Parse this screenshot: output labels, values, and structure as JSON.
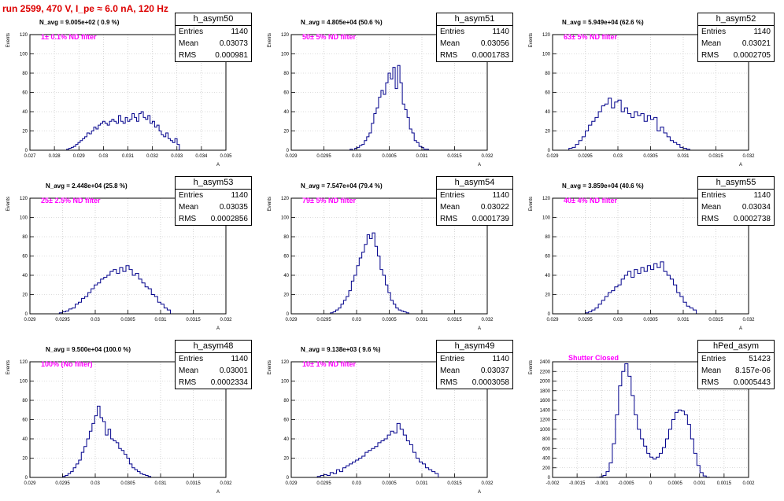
{
  "run_title": "run 2599,   470 V, I_pe ≈ 6.0 nA, 120 Hz",
  "colors": {
    "histogram": "#00008b",
    "filter_label": "#ff00ff",
    "title": "#dd0000",
    "grid": "#bbbbbb"
  },
  "chart_data": [
    {
      "type": "histogram",
      "hist_name": "h_asym50",
      "navg": "N_avg = 9.005e+02 ( 0.9 %)",
      "filter": "1± 0.1% ND filter",
      "stats": {
        "entries": "1140",
        "mean": "0.03073",
        "rms": "0.000981"
      },
      "ylabel": "Events",
      "xlabel": "A",
      "xlim": [
        0.027,
        0.035
      ],
      "ylim": [
        0,
        120
      ],
      "xticks": [
        0.027,
        0.028,
        0.029,
        0.03,
        0.031,
        0.032,
        0.033,
        0.034,
        0.035
      ],
      "xtick_labels": [
        "0.027",
        "0.028",
        "0.029",
        "0.03",
        "0.031",
        "0.032",
        "0.033",
        "0.034",
        "0.035"
      ],
      "yticks": [
        0,
        20,
        40,
        60,
        80,
        100,
        120
      ],
      "bin_edges": [
        0.0285,
        0.0331
      ],
      "counts": [
        1,
        2,
        3,
        4,
        6,
        8,
        10,
        12,
        14,
        18,
        17,
        20,
        24,
        22,
        26,
        28,
        30,
        28,
        26,
        30,
        32,
        30,
        28,
        36,
        30,
        28,
        34,
        30,
        32,
        38,
        34,
        30,
        38,
        40,
        34,
        32,
        36,
        28,
        30,
        24,
        26,
        20,
        16,
        14,
        18,
        12,
        10,
        8,
        12,
        6
      ]
    },
    {
      "type": "histogram",
      "hist_name": "h_asym51",
      "navg": "N_avg = 4.805e+04 (50.6 %)",
      "filter": "50± 5% ND filter",
      "stats": {
        "entries": "1140",
        "mean": "0.03056",
        "rms": "0.0001783"
      },
      "ylabel": "Events",
      "xlabel": "A",
      "xlim": [
        0.029,
        0.032
      ],
      "ylim": [
        0,
        120
      ],
      "xticks": [
        0.029,
        0.0295,
        0.03,
        0.0305,
        0.031,
        0.0315,
        0.032
      ],
      "xtick_labels": [
        "0.029",
        "0.0295",
        "0.03",
        "0.0305",
        "0.031",
        "0.0315",
        "0.032"
      ],
      "yticks": [
        0,
        20,
        40,
        60,
        80,
        100,
        120
      ],
      "bin_edges": [
        0.0299,
        0.0311
      ],
      "counts": [
        1,
        0,
        2,
        3,
        5,
        6,
        10,
        14,
        18,
        28,
        38,
        44,
        55,
        62,
        58,
        70,
        80,
        74,
        86,
        64,
        88,
        70,
        48,
        42,
        34,
        22,
        18,
        10,
        8,
        4,
        3,
        1,
        1
      ]
    },
    {
      "type": "histogram",
      "hist_name": "h_asym52",
      "navg": "N_avg = 5.949e+04 (62.6 %)",
      "filter": "63± 5% ND filter",
      "stats": {
        "entries": "1140",
        "mean": "0.03021",
        "rms": "0.0002705"
      },
      "ylabel": "Events",
      "xlabel": "A",
      "xlim": [
        0.029,
        0.032
      ],
      "ylim": [
        0,
        120
      ],
      "xticks": [
        0.029,
        0.0295,
        0.03,
        0.0305,
        0.031,
        0.0315,
        0.032
      ],
      "xtick_labels": [
        "0.029",
        "0.0295",
        "0.03",
        "0.0305",
        "0.031",
        "0.0315",
        "0.032"
      ],
      "yticks": [
        0,
        20,
        40,
        60,
        80,
        100,
        120
      ],
      "bin_edges": [
        0.02925,
        0.0311
      ],
      "counts": [
        2,
        3,
        6,
        10,
        14,
        20,
        26,
        30,
        34,
        40,
        46,
        48,
        54,
        44,
        50,
        52,
        40,
        44,
        38,
        34,
        40,
        36,
        38,
        30,
        36,
        32,
        34,
        20,
        24,
        18,
        14,
        10,
        8,
        6,
        3,
        2,
        1
      ]
    },
    {
      "type": "histogram",
      "hist_name": "h_asym53",
      "navg": "N_avg = 2.448e+04 (25.8 %)",
      "filter": "25± 2.5% ND filter",
      "stats": {
        "entries": "1140",
        "mean": "0.03035",
        "rms": "0.0002856"
      },
      "ylabel": "Events",
      "xlabel": "A",
      "xlim": [
        0.029,
        0.032
      ],
      "ylim": [
        0,
        120
      ],
      "xticks": [
        0.029,
        0.0295,
        0.03,
        0.0305,
        0.031,
        0.0315,
        0.032
      ],
      "xtick_labels": [
        "0.029",
        "0.0295",
        "0.03",
        "0.0305",
        "0.031",
        "0.0315",
        "0.032"
      ],
      "yticks": [
        0,
        20,
        40,
        60,
        80,
        100,
        120
      ],
      "bin_edges": [
        0.02945,
        0.03115
      ],
      "counts": [
        1,
        2,
        3,
        5,
        6,
        10,
        12,
        16,
        18,
        22,
        26,
        30,
        32,
        36,
        38,
        40,
        44,
        46,
        42,
        48,
        44,
        50,
        46,
        40,
        42,
        36,
        32,
        28,
        26,
        20,
        18,
        12,
        10,
        6,
        4
      ]
    },
    {
      "type": "histogram",
      "hist_name": "h_asym54",
      "navg": "N_avg = 7.547e+04 (79.4 %)",
      "filter": "79± 5% ND filter",
      "stats": {
        "entries": "1140",
        "mean": "0.03022",
        "rms": "0.0001739"
      },
      "ylabel": "Events",
      "xlabel": "A",
      "xlim": [
        0.029,
        0.032
      ],
      "ylim": [
        0,
        120
      ],
      "xticks": [
        0.029,
        0.0295,
        0.03,
        0.0305,
        0.031,
        0.0315,
        0.032
      ],
      "xtick_labels": [
        "0.029",
        "0.0295",
        "0.03",
        "0.0305",
        "0.031",
        "0.0315",
        "0.032"
      ],
      "yticks": [
        0,
        20,
        40,
        60,
        80,
        100,
        120
      ],
      "bin_edges": [
        0.0296,
        0.0308
      ],
      "counts": [
        1,
        2,
        4,
        6,
        10,
        14,
        18,
        24,
        34,
        40,
        50,
        58,
        64,
        72,
        82,
        78,
        84,
        70,
        60,
        46,
        40,
        30,
        22,
        14,
        10,
        6,
        4,
        3,
        2,
        1
      ]
    },
    {
      "type": "histogram",
      "hist_name": "h_asym55",
      "navg": "N_avg = 3.859e+04 (40.6 %)",
      "filter": "40± 4% ND filter",
      "stats": {
        "entries": "1140",
        "mean": "0.03034",
        "rms": "0.0002738"
      },
      "ylabel": "Events",
      "xlabel": "A",
      "xlim": [
        0.029,
        0.032
      ],
      "ylim": [
        0,
        120
      ],
      "xticks": [
        0.029,
        0.0295,
        0.03,
        0.0305,
        0.031,
        0.0315,
        0.032
      ],
      "xtick_labels": [
        "0.029",
        "0.0295",
        "0.03",
        "0.0305",
        "0.031",
        "0.0315",
        "0.032"
      ],
      "yticks": [
        0,
        20,
        40,
        60,
        80,
        100,
        120
      ],
      "bin_edges": [
        0.0295,
        0.0312
      ],
      "counts": [
        1,
        2,
        4,
        6,
        10,
        14,
        18,
        22,
        24,
        28,
        30,
        36,
        40,
        44,
        38,
        46,
        42,
        48,
        44,
        50,
        46,
        52,
        48,
        54,
        44,
        40,
        36,
        30,
        22,
        18,
        12,
        8,
        6,
        4
      ]
    },
    {
      "type": "histogram",
      "hist_name": "h_asym48",
      "navg": "N_avg = 9.500e+04 (100.0 %)",
      "filter": "100% (No filter)",
      "stats": {
        "entries": "1140",
        "mean": "0.03001",
        "rms": "0.0002334"
      },
      "ylabel": "Events",
      "xlabel": "A",
      "xlim": [
        0.029,
        0.032
      ],
      "ylim": [
        0,
        120
      ],
      "xticks": [
        0.029,
        0.0295,
        0.03,
        0.0305,
        0.031,
        0.0315,
        0.032
      ],
      "xtick_labels": [
        "0.029",
        "0.0295",
        "0.03",
        "0.0305",
        "0.031",
        "0.0315",
        "0.032"
      ],
      "yticks": [
        0,
        20,
        40,
        60,
        80,
        100,
        120
      ],
      "bin_edges": [
        0.0295,
        0.03085
      ],
      "counts": [
        1,
        2,
        4,
        6,
        10,
        14,
        18,
        26,
        32,
        40,
        48,
        56,
        64,
        74,
        62,
        58,
        44,
        50,
        40,
        38,
        36,
        30,
        28,
        24,
        20,
        14,
        10,
        8,
        6,
        4,
        3,
        2,
        1
      ]
    },
    {
      "type": "histogram",
      "hist_name": "h_asym49",
      "navg": "N_avg = 9.138e+03 ( 9.6 %)",
      "filter": "10± 1% ND filter",
      "stats": {
        "entries": "1140",
        "mean": "0.03037",
        "rms": "0.0003058"
      },
      "ylabel": "Events",
      "xlabel": "A",
      "xlim": [
        0.029,
        0.032
      ],
      "ylim": [
        0,
        120
      ],
      "xticks": [
        0.029,
        0.0295,
        0.03,
        0.0305,
        0.031,
        0.0315,
        0.032
      ],
      "xtick_labels": [
        "0.029",
        "0.0295",
        "0.03",
        "0.0305",
        "0.031",
        "0.0315",
        "0.032"
      ],
      "yticks": [
        0,
        20,
        40,
        60,
        80,
        100,
        120
      ],
      "bin_edges": [
        0.0294,
        0.03125
      ],
      "counts": [
        1,
        2,
        3,
        2,
        5,
        4,
        8,
        6,
        10,
        12,
        14,
        16,
        18,
        20,
        22,
        26,
        28,
        30,
        32,
        36,
        38,
        40,
        44,
        48,
        46,
        56,
        50,
        44,
        38,
        34,
        26,
        20,
        16,
        14,
        10,
        8,
        6,
        4
      ]
    },
    {
      "type": "histogram",
      "hist_name": "hPed_asym",
      "navg": "",
      "filter": "Shutter Closed",
      "stats": {
        "entries": "51423",
        "mean": "8.157e-06",
        "rms": "0.0005443"
      },
      "ylabel": "Events",
      "xlabel": "",
      "xlim": [
        -0.002,
        0.002
      ],
      "ylim": [
        0,
        2400
      ],
      "xticks": [
        -0.002,
        -0.0015,
        -0.001,
        -0.0005,
        0,
        0.0005,
        0.001,
        0.0015,
        0.002
      ],
      "xtick_labels": [
        "-0.002",
        "-0.0015",
        "-0.001",
        "-0.0005",
        "0",
        "0.0005",
        "0.001",
        "0.0015",
        "0.002"
      ],
      "yticks": [
        0,
        200,
        400,
        600,
        800,
        1000,
        1200,
        1400,
        1600,
        1800,
        2000,
        2200,
        2400
      ],
      "bin_edges": [
        -0.0011,
        0.0012
      ],
      "counts": [
        2,
        10,
        40,
        120,
        300,
        700,
        1300,
        1900,
        2200,
        2360,
        2100,
        1700,
        1300,
        1000,
        800,
        650,
        500,
        420,
        380,
        420,
        500,
        620,
        800,
        1000,
        1200,
        1350,
        1400,
        1380,
        1300,
        1100,
        800,
        500,
        250,
        100,
        30,
        5
      ]
    }
  ]
}
